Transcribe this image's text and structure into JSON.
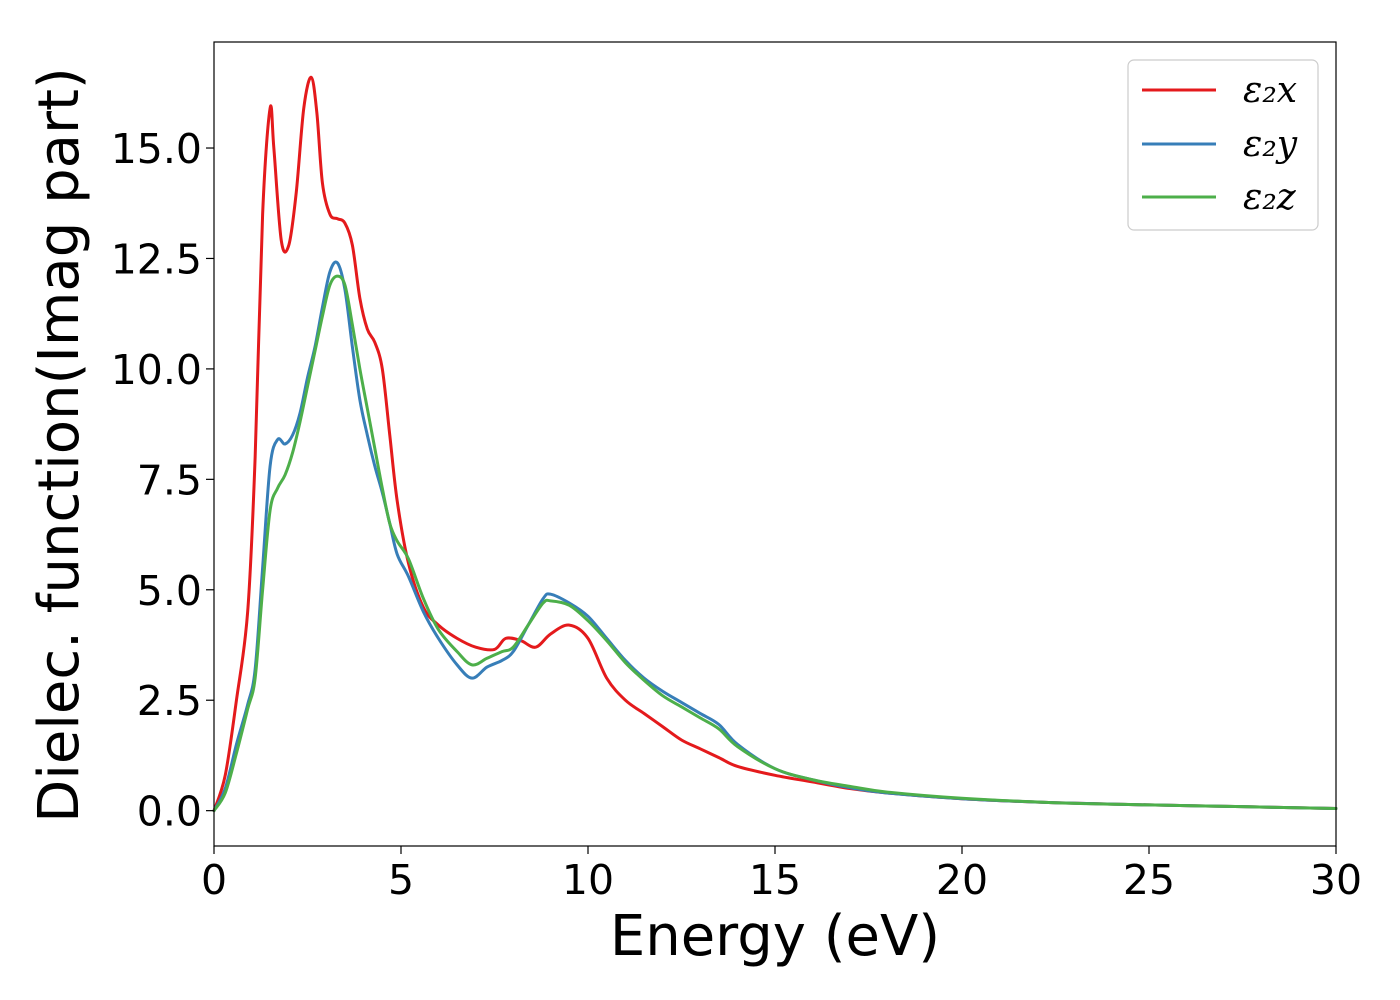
{
  "chart_data": {
    "type": "line",
    "title": "",
    "xlabel": "Energy (eV)",
    "ylabel": "Dielec. function(Imag part)",
    "xlim": [
      0,
      30
    ],
    "ylim": [
      -0.8,
      17.4
    ],
    "xticks": [
      0,
      5,
      10,
      15,
      20,
      25,
      30
    ],
    "xtick_labels": [
      "0",
      "5",
      "10",
      "15",
      "20",
      "25",
      "30"
    ],
    "yticks": [
      0.0,
      2.5,
      5.0,
      7.5,
      10.0,
      12.5,
      15.0
    ],
    "ytick_labels": [
      "0.0",
      "2.5",
      "5.0",
      "7.5",
      "10.0",
      "12.5",
      "15.0"
    ],
    "grid": false,
    "legend_position": "top-right",
    "series": [
      {
        "name": "ε₂x",
        "color": "#e41a1c",
        "x": [
          0,
          0.3,
          0.6,
          0.9,
          1.1,
          1.3,
          1.5,
          1.6,
          1.8,
          2.0,
          2.2,
          2.4,
          2.6,
          2.75,
          2.9,
          3.1,
          3.3,
          3.5,
          3.7,
          3.9,
          4.1,
          4.3,
          4.5,
          4.7,
          4.9,
          5.2,
          5.6,
          6.0,
          6.5,
          7.0,
          7.5,
          7.8,
          8.2,
          8.6,
          9.0,
          9.5,
          10.0,
          10.5,
          11.0,
          11.5,
          12.0,
          12.5,
          13.0,
          13.5,
          14.0,
          15.0,
          16.0,
          17.0,
          18.0,
          20.0,
          22.5,
          25.0,
          27.5,
          30.0
        ],
        "y": [
          0.0,
          0.8,
          2.5,
          4.5,
          8.0,
          13.5,
          15.9,
          15.0,
          12.9,
          12.8,
          14.0,
          15.9,
          16.6,
          15.8,
          14.2,
          13.5,
          13.4,
          13.3,
          12.8,
          11.6,
          10.9,
          10.6,
          10.0,
          8.5,
          7.0,
          5.6,
          4.6,
          4.2,
          3.9,
          3.7,
          3.65,
          3.9,
          3.85,
          3.7,
          4.0,
          4.2,
          3.9,
          3.0,
          2.5,
          2.2,
          1.9,
          1.6,
          1.4,
          1.2,
          1.0,
          0.8,
          0.65,
          0.5,
          0.4,
          0.27,
          0.18,
          0.13,
          0.09,
          0.05
        ]
      },
      {
        "name": "ε₂y",
        "color": "#377eb8",
        "x": [
          0,
          0.3,
          0.6,
          0.9,
          1.1,
          1.3,
          1.5,
          1.7,
          1.9,
          2.1,
          2.3,
          2.5,
          2.7,
          2.9,
          3.1,
          3.3,
          3.5,
          3.7,
          3.9,
          4.1,
          4.3,
          4.5,
          4.7,
          4.9,
          5.2,
          5.6,
          6.0,
          6.5,
          6.9,
          7.3,
          7.7,
          8.0,
          8.4,
          8.8,
          9.0,
          9.5,
          10.0,
          10.5,
          11.0,
          11.5,
          12.0,
          12.5,
          13.0,
          13.5,
          14.0,
          15.0,
          16.0,
          17.0,
          18.0,
          20.0,
          22.5,
          25.0,
          27.5,
          30.0
        ],
        "y": [
          0.0,
          0.5,
          1.5,
          2.4,
          3.2,
          5.5,
          7.8,
          8.4,
          8.3,
          8.5,
          9.0,
          9.8,
          10.5,
          11.4,
          12.2,
          12.4,
          11.8,
          10.5,
          9.3,
          8.5,
          7.8,
          7.2,
          6.5,
          5.8,
          5.3,
          4.5,
          3.9,
          3.3,
          3.0,
          3.25,
          3.4,
          3.6,
          4.2,
          4.8,
          4.9,
          4.7,
          4.4,
          3.9,
          3.4,
          3.0,
          2.7,
          2.45,
          2.2,
          1.95,
          1.5,
          0.95,
          0.7,
          0.52,
          0.4,
          0.27,
          0.18,
          0.13,
          0.09,
          0.05
        ]
      },
      {
        "name": "ε₂z",
        "color": "#4daf4a",
        "x": [
          0,
          0.3,
          0.6,
          0.9,
          1.1,
          1.3,
          1.5,
          1.7,
          1.9,
          2.1,
          2.3,
          2.5,
          2.7,
          2.9,
          3.1,
          3.3,
          3.5,
          3.7,
          3.9,
          4.1,
          4.3,
          4.5,
          4.7,
          4.9,
          5.2,
          5.6,
          6.0,
          6.5,
          6.9,
          7.3,
          7.7,
          8.0,
          8.4,
          8.8,
          9.0,
          9.5,
          10.0,
          10.5,
          11.0,
          11.5,
          12.0,
          12.5,
          13.0,
          13.5,
          14.0,
          15.0,
          16.0,
          17.0,
          18.0,
          20.0,
          22.5,
          25.0,
          27.5,
          30.0
        ],
        "y": [
          0.0,
          0.4,
          1.3,
          2.3,
          3.0,
          5.0,
          6.8,
          7.3,
          7.6,
          8.1,
          8.8,
          9.6,
          10.4,
          11.2,
          11.9,
          12.1,
          11.9,
          11.0,
          10.0,
          9.1,
          8.2,
          7.3,
          6.5,
          6.1,
          5.7,
          4.8,
          4.1,
          3.6,
          3.3,
          3.45,
          3.6,
          3.7,
          4.2,
          4.7,
          4.75,
          4.65,
          4.3,
          3.85,
          3.35,
          2.95,
          2.6,
          2.35,
          2.1,
          1.85,
          1.45,
          0.95,
          0.7,
          0.55,
          0.42,
          0.28,
          0.18,
          0.13,
          0.09,
          0.05
        ]
      }
    ]
  }
}
